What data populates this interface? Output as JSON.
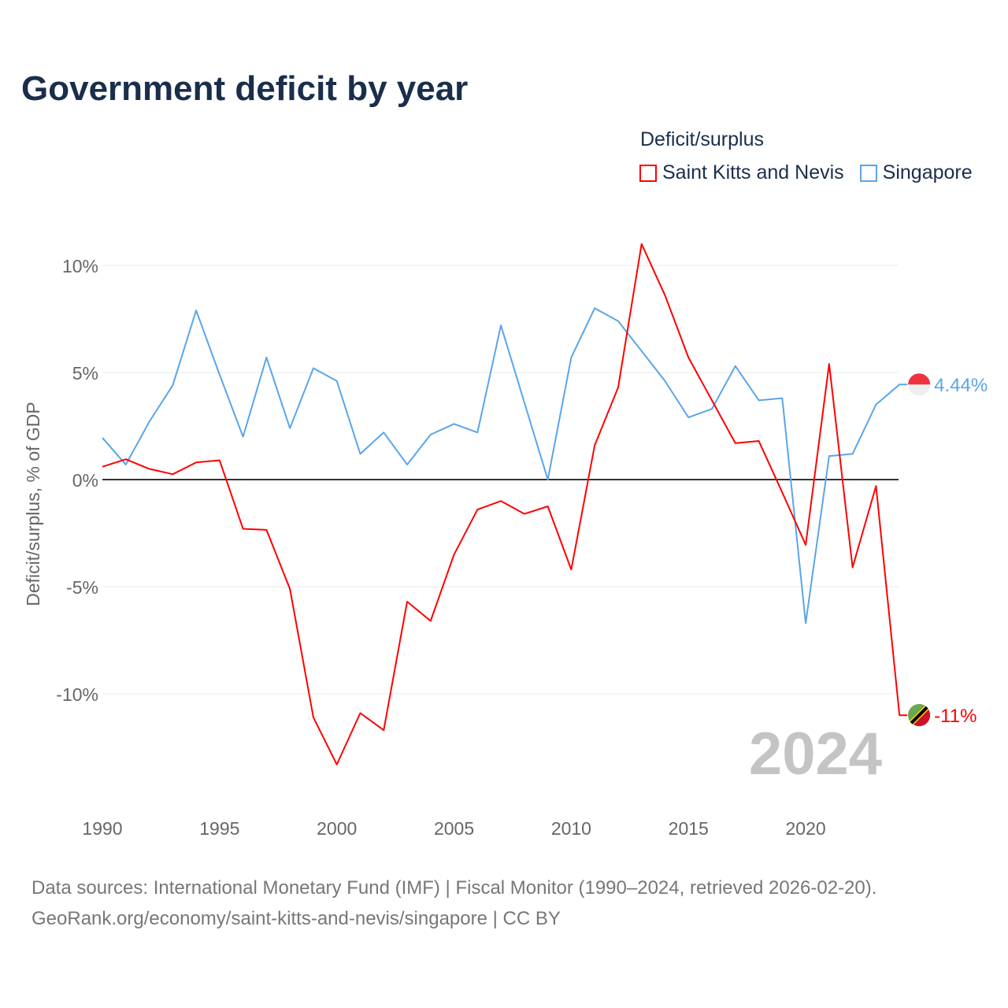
{
  "title": "Government deficit by year",
  "legend": {
    "title": "Deficit/surplus",
    "items": [
      {
        "label": "Saint Kitts and Nevis",
        "color": "#ff0000"
      },
      {
        "label": "Singapore",
        "color": "#5aa5ea"
      }
    ]
  },
  "source": {
    "line1": "Data sources: International Monetary Fund (IMF) | Fiscal Monitor (1990–2024, retrieved 2026-02-20).",
    "line2": "GeoRank.org/economy/saint-kitts-and-nevis/singapore | CC BY"
  },
  "chart_data": {
    "type": "line",
    "title": "Government deficit by year",
    "xlabel": "",
    "ylabel": "Deficit/surplus, % of GDP",
    "watermark_year": "2024",
    "xlim": [
      1990,
      2024
    ],
    "ylim": [
      -14,
      11
    ],
    "xticks": [
      1990,
      1995,
      2000,
      2005,
      2010,
      2015,
      2020
    ],
    "yticks": [
      {
        "v": 10,
        "label": "10%"
      },
      {
        "v": 5,
        "label": "5%"
      },
      {
        "v": 0,
        "label": "0%"
      },
      {
        "v": -5,
        "label": "-5%"
      },
      {
        "v": -10,
        "label": "-10%"
      }
    ],
    "x": [
      1990,
      1991,
      1992,
      1993,
      1994,
      1995,
      1996,
      1997,
      1998,
      1999,
      2000,
      2001,
      2002,
      2003,
      2004,
      2005,
      2006,
      2007,
      2008,
      2009,
      2010,
      2011,
      2012,
      2013,
      2014,
      2015,
      2016,
      2017,
      2018,
      2019,
      2020,
      2021,
      2022,
      2023,
      2024
    ],
    "series": [
      {
        "name": "Saint Kitts and Nevis",
        "color": "#ff0000",
        "end_label": "-11%",
        "flag": "saint-kitts-and-nevis-flag",
        "values": [
          0.6,
          0.95,
          0.5,
          0.25,
          0.8,
          0.9,
          -2.3,
          -2.35,
          -5.1,
          -11.1,
          -13.3,
          -10.9,
          -11.7,
          -5.7,
          -6.6,
          -3.5,
          -1.4,
          -1.0,
          -1.6,
          -1.25,
          -4.2,
          1.6,
          4.3,
          11.0,
          8.6,
          5.7,
          3.7,
          1.7,
          1.8,
          -0.6,
          -3.05,
          5.4,
          -4.1,
          -0.3,
          -11.0
        ]
      },
      {
        "name": "Singapore",
        "color": "#5aa5ea",
        "end_label": "4.44%",
        "flag": "singapore-flag",
        "values": [
          1.95,
          0.7,
          2.7,
          4.4,
          7.9,
          4.9,
          2.0,
          5.7,
          2.4,
          5.2,
          4.6,
          1.2,
          2.2,
          0.7,
          2.1,
          2.6,
          2.2,
          7.2,
          3.6,
          0.0,
          5.7,
          8.0,
          7.4,
          6.0,
          4.6,
          2.9,
          3.3,
          5.3,
          3.7,
          3.8,
          -6.7,
          1.1,
          1.2,
          3.5,
          4.44
        ]
      }
    ]
  }
}
